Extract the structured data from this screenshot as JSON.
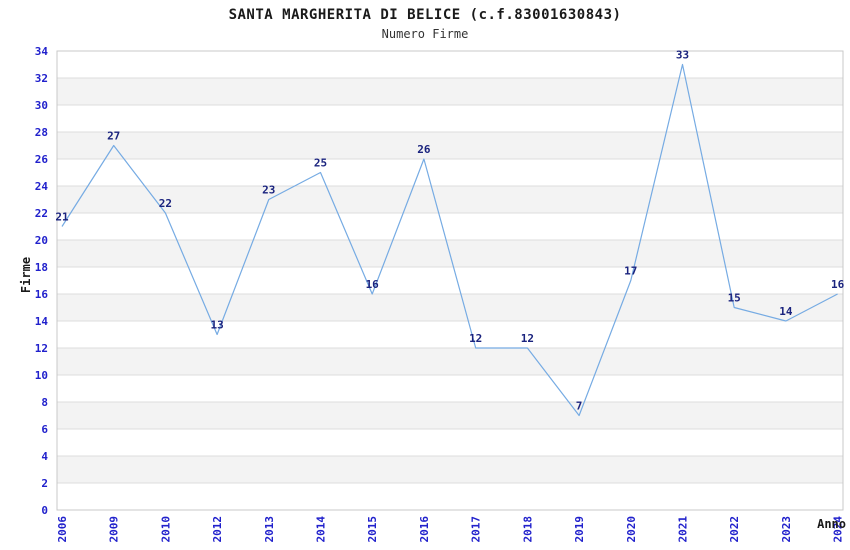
{
  "chart_data": {
    "type": "line",
    "title": "SANTA MARGHERITA DI BELICE (c.f.83001630843)",
    "subtitle": "Numero Firme",
    "xlabel": "Anno",
    "ylabel": "Firme",
    "categories": [
      "2006",
      "2009",
      "2010",
      "2012",
      "2013",
      "2014",
      "2015",
      "2016",
      "2017",
      "2018",
      "2019",
      "2020",
      "2021",
      "2022",
      "2023",
      "2024"
    ],
    "values": [
      21,
      27,
      22,
      13,
      23,
      25,
      16,
      26,
      12,
      12,
      7,
      17,
      33,
      15,
      14,
      16
    ],
    "ylim": [
      0,
      34
    ],
    "ytick_step": 2,
    "grid": "horizontal-gridlines-with-alternating-bands",
    "legend_position": "none",
    "colors": {
      "line": "#76abe3",
      "tick_labels": "#2121cc",
      "point_labels": "#1a237e",
      "band": "#f3f3f3",
      "gridline": "#dcdcdc",
      "frame": "#c9c9c9",
      "title": "#1a1a1a"
    }
  }
}
